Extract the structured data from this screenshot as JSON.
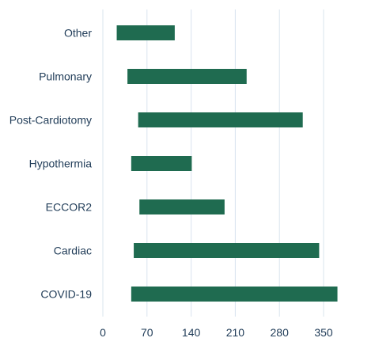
{
  "chart_data": {
    "type": "bar",
    "orientation": "horizontal",
    "style": "floating",
    "categories": [
      "Other",
      "Pulmonary",
      "Post-Cardiotomy",
      "Hypothermia",
      "ECCOR2",
      "Cardiac",
      "COVID-19"
    ],
    "series": [
      {
        "start": [
          22,
          39,
          56,
          45,
          58,
          49,
          45
        ],
        "end": [
          114,
          228,
          317,
          141,
          193,
          343,
          372
        ]
      }
    ],
    "xticks": [
      0,
      70,
      140,
      210,
      280,
      350
    ],
    "xlim": [
      0,
      372
    ],
    "grid": true,
    "bar_color": "#1f6b50",
    "grid_color": "#d9e4ee",
    "label_color": "#1f3b57"
  }
}
